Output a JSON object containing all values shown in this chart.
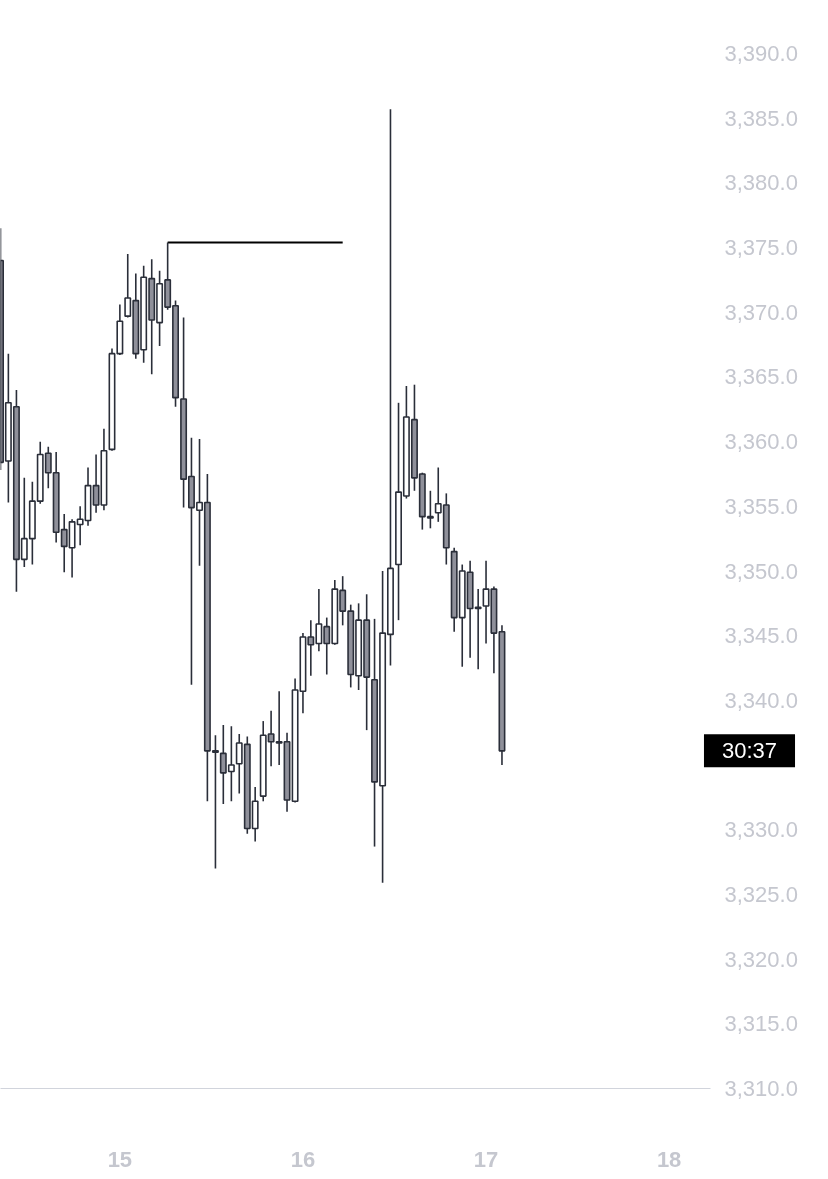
{
  "chart_data": {
    "type": "candlestick",
    "x": [
      14.348,
      14.391,
      14.435,
      14.478,
      14.522,
      14.565,
      14.609,
      14.652,
      14.696,
      14.739,
      14.783,
      14.826,
      14.87,
      14.913,
      14.957,
      15,
      15.043,
      15.087,
      15.13,
      15.174,
      15.217,
      15.261,
      15.304,
      15.348,
      15.391,
      15.435,
      15.478,
      15.522,
      15.565,
      15.609,
      15.652,
      15.696,
      15.739,
      15.783,
      15.826,
      15.87,
      15.913,
      15.957,
      16,
      16.043,
      16.087,
      16.13,
      16.174,
      16.217,
      16.261,
      16.304,
      16.348,
      16.391,
      16.435,
      16.478,
      16.522,
      16.565,
      16.609,
      16.652,
      16.696,
      16.739,
      16.783,
      16.826,
      16.87,
      16.913,
      16.957,
      17,
      17.043,
      17.087
    ],
    "ohlc": [
      [
        3374.0,
        3376.5,
        3357.8,
        3358.4
      ],
      [
        3358.5,
        3366.8,
        3355.3,
        3363.0
      ],
      [
        3362.7,
        3364.0,
        3348.4,
        3350.9
      ],
      [
        3350.9,
        3357.2,
        3350.3,
        3352.5
      ],
      [
        3352.5,
        3356.9,
        3350.5,
        3355.4
      ],
      [
        3355.4,
        3360.0,
        3355.2,
        3359.0
      ],
      [
        3359.1,
        3359.6,
        3356.4,
        3357.6
      ],
      [
        3357.6,
        3359.2,
        3352.2,
        3353.0
      ],
      [
        3353.2,
        3354.4,
        3349.9,
        3351.9
      ],
      [
        3351.8,
        3354.0,
        3349.5,
        3353.8
      ],
      [
        3353.6,
        3355.0,
        3352.0,
        3354.0
      ],
      [
        3353.9,
        3358.0,
        3353.5,
        3356.6
      ],
      [
        3356.6,
        3359.0,
        3354.5,
        3355.1
      ],
      [
        3355.1,
        3361.0,
        3354.7,
        3359.3
      ],
      [
        3359.4,
        3367.2,
        3359.3,
        3366.8
      ],
      [
        3366.8,
        3370.6,
        3366.7,
        3369.3
      ],
      [
        3369.7,
        3374.5,
        3369.6,
        3371.1
      ],
      [
        3370.9,
        3373.0,
        3366.4,
        3366.8
      ],
      [
        3367.1,
        3373.6,
        3366.1,
        3372.7
      ],
      [
        3372.6,
        3374.1,
        3365.2,
        3369.4
      ],
      [
        3369.2,
        3373.2,
        3367.4,
        3372.2
      ],
      [
        3372.5,
        3375.4,
        3370.2,
        3370.4
      ],
      [
        3370.5,
        3370.9,
        3362.7,
        3363.4
      ],
      [
        3363.3,
        3369.6,
        3354.9,
        3357.1
      ],
      [
        3357.3,
        3360.3,
        3341.2,
        3354.9
      ],
      [
        3354.7,
        3360.2,
        3350.4,
        3355.3
      ],
      [
        3355.3,
        3357.5,
        3332.2,
        3336.1
      ],
      [
        3336.1,
        3337.3,
        3327.0,
        3336.0
      ],
      [
        3335.9,
        3338.1,
        3332.0,
        3334.4
      ],
      [
        3334.5,
        3338.0,
        3332.2,
        3335.0
      ],
      [
        3335.1,
        3337.4,
        3332.8,
        3336.7
      ],
      [
        3336.6,
        3337.2,
        3329.7,
        3330.1
      ],
      [
        3330.1,
        3333.3,
        3329.1,
        3332.2
      ],
      [
        3332.6,
        3338.4,
        3332.2,
        3337.3
      ],
      [
        3337.4,
        3339.2,
        3334.9,
        3336.8
      ],
      [
        3336.8,
        3340.7,
        3335.0,
        3336.7
      ],
      [
        3336.8,
        3337.5,
        3331.4,
        3332.3
      ],
      [
        3332.2,
        3341.7,
        3332.1,
        3340.8
      ],
      [
        3340.7,
        3345.2,
        3339.0,
        3344.9
      ],
      [
        3344.9,
        3346.2,
        3341.9,
        3344.3
      ],
      [
        3344.4,
        3348.6,
        3343.8,
        3345.9
      ],
      [
        3345.7,
        3346.4,
        3342.0,
        3344.4
      ],
      [
        3344.4,
        3349.3,
        3344.3,
        3348.6
      ],
      [
        3348.5,
        3349.6,
        3345.8,
        3346.9
      ],
      [
        3346.9,
        3347.4,
        3341.0,
        3342.0
      ],
      [
        3341.9,
        3347.5,
        3340.8,
        3346.2
      ],
      [
        3346.2,
        3348.2,
        3337.7,
        3341.8
      ],
      [
        3341.6,
        3346.3,
        3328.7,
        3333.7
      ],
      [
        3333.4,
        3350.0,
        3325.9,
        3345.2
      ],
      [
        3345.1,
        3385.7,
        3342.7,
        3350.2
      ],
      [
        3350.5,
        3363.0,
        3346.2,
        3356.1
      ],
      [
        3355.8,
        3364.3,
        3355.6,
        3361.9
      ],
      [
        3361.7,
        3364.4,
        3356.2,
        3357.2
      ],
      [
        3357.5,
        3357.6,
        3353.2,
        3354.2
      ],
      [
        3354.2,
        3356.2,
        3353.3,
        3354.1
      ],
      [
        3354.5,
        3358.0,
        3353.8,
        3355.2
      ],
      [
        3355.1,
        3356.0,
        3350.5,
        3351.8
      ],
      [
        3351.5,
        3351.8,
        3345.3,
        3346.4
      ],
      [
        3346.4,
        3350.5,
        3342.6,
        3350.0
      ],
      [
        3349.9,
        3350.8,
        3343.3,
        3347.1
      ],
      [
        3347.2,
        3348.6,
        3342.4,
        3347.1
      ],
      [
        3347.3,
        3350.8,
        3344.4,
        3348.6
      ],
      [
        3348.6,
        3348.8,
        3342.1,
        3345.2
      ],
      [
        3345.3,
        3345.8,
        3335.0,
        3336.1
      ]
    ],
    "color": "#2a2e39",
    "colors": [
      "#8f909a",
      "#ffffff",
      "#8f909a",
      "#ffffff",
      "#ffffff",
      "#ffffff",
      "#8f909a",
      "#8f909a",
      "#8f909a",
      "#ffffff",
      "#ffffff",
      "#ffffff",
      "#8f909a",
      "#ffffff",
      "#ffffff",
      "#ffffff",
      "#ffffff",
      "#8f909a",
      "#ffffff",
      "#8f909a",
      "#ffffff",
      "#8f909a",
      "#8f909a",
      "#8f909a",
      "#8f909a",
      "#ffffff",
      "#8f909a",
      "#8f909a",
      "#8f909a",
      "#ffffff",
      "#ffffff",
      "#8f909a",
      "#ffffff",
      "#ffffff",
      "#8f909a",
      "#8f909a",
      "#8f909a",
      "#ffffff",
      "#ffffff",
      "#8f909a",
      "#ffffff",
      "#8f909a",
      "#ffffff",
      "#8f909a",
      "#8f909a",
      "#ffffff",
      "#8f909a",
      "#8f909a",
      "#ffffff",
      "#ffffff",
      "#ffffff",
      "#ffffff",
      "#8f909a",
      "#8f909a",
      "#8f909a",
      "#ffffff",
      "#8f909a",
      "#8f909a",
      "#ffffff",
      "#8f909a",
      "#8f909a",
      "#ffffff",
      "#8f909a",
      "#8f909a"
    ],
    "series": [
      {
        "type": "line",
        "x": [
          15.261,
          16.217
        ],
        "values": [
          3375.4,
          3375.4
        ],
        "color": "#000000"
      }
    ],
    "xlim": [
      14.348,
      18.226
    ],
    "ylim": [
      3310,
      3390
    ],
    "xticks": [
      15,
      16,
      17,
      18
    ],
    "yticks": [
      {
        "value": 3310,
        "label": "3,310.0"
      },
      {
        "value": 3315,
        "label": "3,315.0"
      },
      {
        "value": 3320,
        "label": "3,320.0"
      },
      {
        "value": 3325,
        "label": "3,325.0"
      },
      {
        "value": 3330,
        "label": "3,330.0"
      },
      {
        "value": 3340,
        "label": "3,340.0"
      },
      {
        "value": 3345,
        "label": "3,345.0"
      },
      {
        "value": 3350,
        "label": "3,350.0"
      },
      {
        "value": 3355,
        "label": "3,355.0"
      },
      {
        "value": 3360,
        "label": "3,360.0"
      },
      {
        "value": 3365,
        "label": "3,365.0"
      },
      {
        "value": 3370,
        "label": "3,370.0"
      },
      {
        "value": 3375,
        "label": "3,375.0"
      },
      {
        "value": 3380,
        "label": "3,380.0"
      },
      {
        "value": 3385,
        "label": "3,385.0"
      },
      {
        "value": 3390,
        "label": "3,390.0"
      }
    ],
    "annotations": [
      "30:37"
    ]
  }
}
